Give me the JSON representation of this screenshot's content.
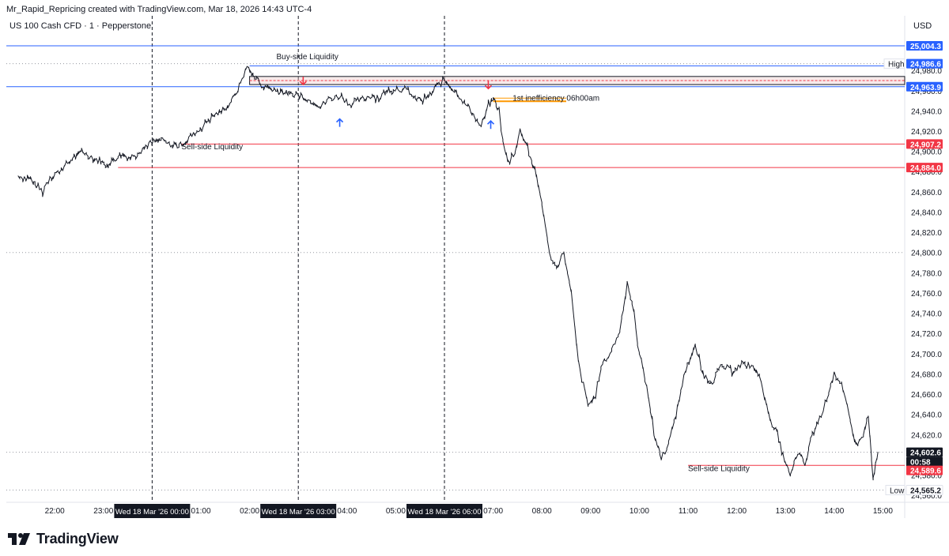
{
  "header": {
    "caption": "Mr_Rapid_Repricing created with TradingView.com, Mar 18, 2026 14:43 UTC-4",
    "symbol": "US 100 Cash CFD · 1 · Pepperstone",
    "currency": "USD"
  },
  "footer": {
    "brand": "TradingView"
  },
  "chart_data": {
    "type": "line",
    "title": "US 100 Cash CFD · 1 · Pepperstone",
    "y_axis": {
      "range": [
        24555,
        25030
      ],
      "ticks": [
        "24,980.0",
        "24,960.0",
        "24,940.0",
        "24,920.0",
        "24,900.0",
        "24,880.0",
        "24,860.0",
        "24,840.0",
        "24,820.0",
        "24,800.0",
        "24,780.0",
        "24,760.0",
        "24,740.0",
        "24,720.0",
        "24,700.0",
        "24,680.0",
        "24,660.0",
        "24,640.0",
        "24,620.0",
        "24,600.0",
        "24,580.0",
        "24,560.0"
      ],
      "tick_values": [
        24980,
        24960,
        24940,
        24920,
        24900,
        24880,
        24860,
        24840,
        24820,
        24800,
        24780,
        24760,
        24740,
        24720,
        24700,
        24680,
        24660,
        24640,
        24620,
        24600,
        24580,
        24560
      ]
    },
    "x_axis": {
      "range": [
        21.25,
        15.65
      ],
      "tick_labels": [
        "22:00",
        "23:00",
        "01:00",
        "02:00",
        "04:00",
        "05:00",
        "07:00",
        "08:00",
        "09:00",
        "10:00",
        "11:00",
        "12:00",
        "13:00",
        "14:00",
        "15:00"
      ],
      "tick_hours": [
        22,
        23,
        25,
        26,
        28,
        29,
        31,
        32,
        33,
        34,
        35,
        36,
        37,
        38,
        39
      ],
      "highlight_labels": [
        {
          "text": "Wed 18 Mar '26  00:00",
          "hour": 24
        },
        {
          "text": "Wed 18 Mar '26  03:00",
          "hour": 27
        },
        {
          "text": "Wed 18 Mar '26  06:00",
          "hour": 30
        }
      ]
    },
    "series": [
      {
        "points": [
          [
            21.25,
            24876
          ],
          [
            21.5,
            24872
          ],
          [
            21.75,
            24860
          ],
          [
            21.9,
            24875
          ],
          [
            22.1,
            24880
          ],
          [
            22.3,
            24890
          ],
          [
            22.55,
            24900
          ],
          [
            22.75,
            24895
          ],
          [
            22.95,
            24890
          ],
          [
            23.1,
            24886
          ],
          [
            23.3,
            24895
          ],
          [
            23.55,
            24895
          ],
          [
            23.7,
            24898
          ],
          [
            23.9,
            24907
          ],
          [
            24.15,
            24912
          ],
          [
            24.35,
            24907
          ],
          [
            24.55,
            24905
          ],
          [
            24.75,
            24913
          ],
          [
            24.95,
            24920
          ],
          [
            25.15,
            24930
          ],
          [
            25.35,
            24938
          ],
          [
            25.55,
            24945
          ],
          [
            25.7,
            24955
          ],
          [
            25.85,
            24972
          ],
          [
            25.95,
            24984
          ],
          [
            26.1,
            24974
          ],
          [
            26.25,
            24965
          ],
          [
            26.4,
            24962
          ],
          [
            26.6,
            24959
          ],
          [
            26.85,
            24957
          ],
          [
            27.05,
            24955
          ],
          [
            27.25,
            24950
          ],
          [
            27.45,
            24945
          ],
          [
            27.65,
            24952
          ],
          [
            27.85,
            24955
          ],
          [
            28.05,
            24947
          ],
          [
            28.25,
            24950
          ],
          [
            28.45,
            24955
          ],
          [
            28.65,
            24953
          ],
          [
            28.85,
            24960
          ],
          [
            29.05,
            24962
          ],
          [
            29.25,
            24960
          ],
          [
            29.4,
            24952
          ],
          [
            29.55,
            24950
          ],
          [
            29.7,
            24955
          ],
          [
            29.85,
            24966
          ],
          [
            30.0,
            24970
          ],
          [
            30.15,
            24962
          ],
          [
            30.3,
            24955
          ],
          [
            30.45,
            24946
          ],
          [
            30.6,
            24936
          ],
          [
            30.75,
            24925
          ],
          [
            30.9,
            24945
          ],
          [
            31.0,
            24952
          ],
          [
            31.12,
            24940
          ],
          [
            31.2,
            24910
          ],
          [
            31.3,
            24888
          ],
          [
            31.45,
            24900
          ],
          [
            31.55,
            24920
          ],
          [
            31.7,
            24905
          ],
          [
            31.85,
            24880
          ],
          [
            32.0,
            24850
          ],
          [
            32.15,
            24800
          ],
          [
            32.3,
            24786
          ],
          [
            32.45,
            24800
          ],
          [
            32.6,
            24760
          ],
          [
            32.75,
            24690
          ],
          [
            32.95,
            24648
          ],
          [
            33.1,
            24660
          ],
          [
            33.25,
            24690
          ],
          [
            33.4,
            24700
          ],
          [
            33.6,
            24722
          ],
          [
            33.75,
            24770
          ],
          [
            33.85,
            24752
          ],
          [
            34.0,
            24700
          ],
          [
            34.15,
            24670
          ],
          [
            34.3,
            24620
          ],
          [
            34.45,
            24598
          ],
          [
            34.6,
            24610
          ],
          [
            34.75,
            24640
          ],
          [
            34.95,
            24685
          ],
          [
            35.15,
            24708
          ],
          [
            35.3,
            24680
          ],
          [
            35.5,
            24672
          ],
          [
            35.7,
            24688
          ],
          [
            35.9,
            24683
          ],
          [
            36.1,
            24690
          ],
          [
            36.3,
            24688
          ],
          [
            36.5,
            24675
          ],
          [
            36.65,
            24638
          ],
          [
            36.8,
            24625
          ],
          [
            36.95,
            24600
          ],
          [
            37.1,
            24578
          ],
          [
            37.25,
            24602
          ],
          [
            37.4,
            24590
          ],
          [
            37.55,
            24620
          ],
          [
            37.7,
            24635
          ],
          [
            37.85,
            24655
          ],
          [
            38.0,
            24682
          ],
          [
            38.15,
            24668
          ],
          [
            38.3,
            24640
          ],
          [
            38.45,
            24608
          ],
          [
            38.6,
            24620
          ],
          [
            38.7,
            24638
          ],
          [
            38.8,
            24575
          ],
          [
            38.85,
            24590
          ],
          [
            38.9,
            24603
          ]
        ]
      }
    ],
    "horizontal_lines": [
      {
        "label": "Buy-side Liquidity",
        "value": 24984.5,
        "color": "#2962ff"
      },
      {
        "label": "Sell-side Liquidity",
        "value": 24907.2,
        "color": "#f23645"
      },
      {
        "label": "",
        "value": 24884.0,
        "color": "#f23645"
      },
      {
        "label": "Sell-side Liquidity",
        "value": 24589.6,
        "color": "#f23645"
      },
      {
        "label": "1st inefficiency 06h00am",
        "value": 24949.5,
        "color": "#ff9800"
      }
    ],
    "zones": [
      {
        "from": 24966,
        "to": 24974,
        "color": "#e8c4c4"
      }
    ],
    "annotations": [
      {
        "text": "Buy-side Liquidity",
        "hour": 26.55,
        "value": 24991
      },
      {
        "text": "Sell-side Liquidity",
        "hour": 24.6,
        "value": 24902
      },
      {
        "text": "1st inefficiency 06h00am",
        "hour": 31.4,
        "value": 24950
      },
      {
        "text": "Sell-side Liquidity",
        "hour": 35.0,
        "value": 24584
      }
    ],
    "arrows": [
      {
        "dir": "down",
        "hour": 27.1,
        "value": 24966,
        "color": "#f23645"
      },
      {
        "dir": "up",
        "hour": 27.85,
        "value": 24932,
        "color": "#2962ff"
      },
      {
        "dir": "down",
        "hour": 30.9,
        "value": 24962,
        "color": "#f23645"
      },
      {
        "dir": "up",
        "hour": 30.95,
        "value": 24930,
        "color": "#2962ff"
      }
    ],
    "price_labels": [
      {
        "text": "25,004.3",
        "value": 25004.3,
        "bg": "#2962ff",
        "fg": "#ffffff"
      },
      {
        "text": "24,986.6",
        "value": 24986.6,
        "bg": "#2962ff",
        "fg": "#ffffff"
      },
      {
        "text": "24,963.9",
        "value": 24963.9,
        "bg": "#2962ff",
        "fg": "#ffffff"
      },
      {
        "text": "24,907.2",
        "value": 24907.2,
        "bg": "#f23645",
        "fg": "#ffffff"
      },
      {
        "text": "24,884.0",
        "value": 24884.0,
        "bg": "#f23645",
        "fg": "#ffffff"
      },
      {
        "text": "24,602.6",
        "value": 24602.6,
        "bg": "#131722",
        "fg": "#ffffff"
      },
      {
        "text": "00:58",
        "value": 24593.6,
        "bg": "#131722",
        "fg": "#ffffff"
      },
      {
        "text": "24,589.6",
        "value": 24589.6,
        "bg": "#f23645",
        "fg": "#ffffff"
      },
      {
        "text": "24,565.2",
        "value": 24565.2,
        "bg": "#ffffff",
        "fg": "#131722"
      }
    ],
    "high_label": {
      "text": "High",
      "value": 24986.6
    },
    "low_label": {
      "text": "Low",
      "value": 24565.2
    },
    "reference_lines": [
      {
        "value": 25004.3,
        "color": "#2962ff",
        "style": "solid"
      },
      {
        "value": 24963.9,
        "color": "#2962ff",
        "style": "solid"
      },
      {
        "value": 24986.6,
        "color": "#9598a1",
        "style": "dotted"
      },
      {
        "value": 24800,
        "color": "#9598a1",
        "style": "dotted"
      },
      {
        "value": 24602.6,
        "color": "#9598a1",
        "style": "dotted"
      },
      {
        "value": 24565.2,
        "color": "#9598a1",
        "style": "dotted"
      }
    ],
    "session_lines_hours": [
      24,
      27,
      30
    ],
    "grid": false
  }
}
